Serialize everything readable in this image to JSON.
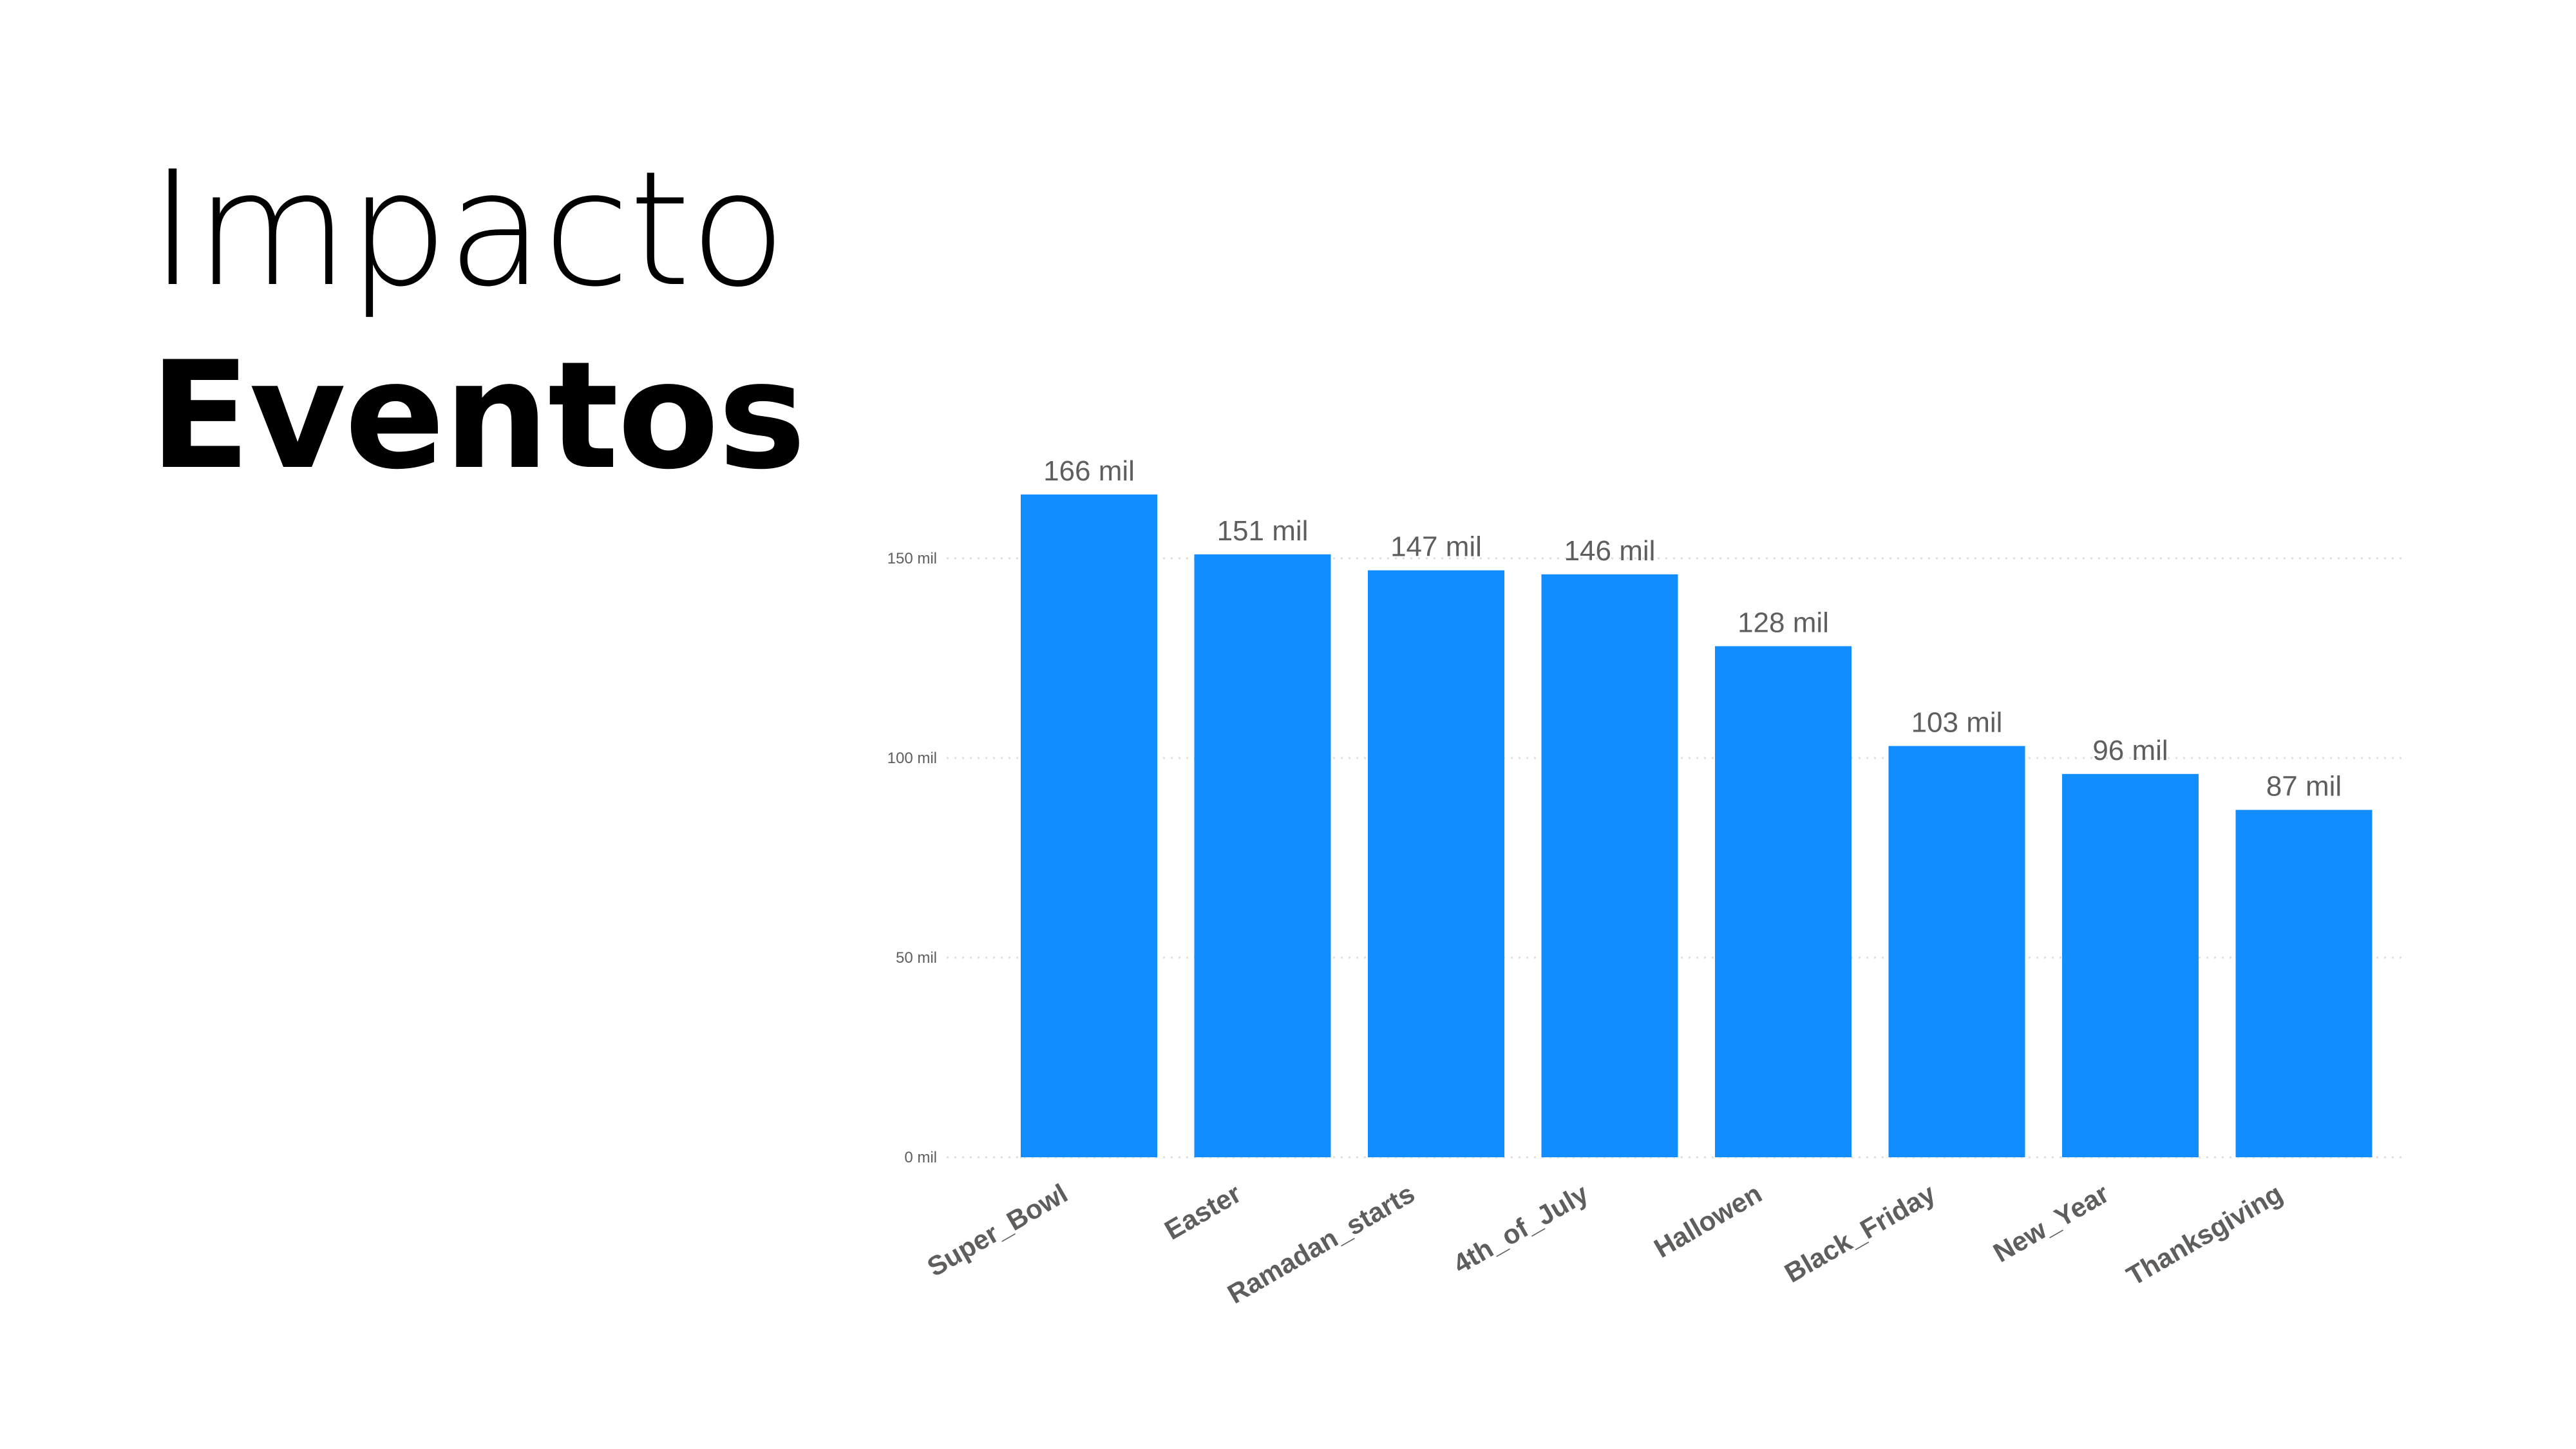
{
  "slide": {
    "title_line1": "Impacto",
    "title_line2": "Eventos"
  },
  "colors": {
    "bar": "#118dff",
    "gridline": "#e1dfdd",
    "label": "#605e5c"
  },
  "chart_data": {
    "type": "bar",
    "title": "",
    "xlabel": "",
    "ylabel": "",
    "categories": [
      "Super_Bowl",
      "Easter",
      "Ramadan_starts",
      "4th_of_July",
      "Hallowen",
      "Black_Friday",
      "New_Year",
      "Thanksgiving"
    ],
    "values": [
      166,
      151,
      147,
      146,
      128,
      103,
      96,
      87
    ],
    "data_labels": [
      "166 mil",
      "151 mil",
      "147 mil",
      "146 mil",
      "128 mil",
      "103 mil",
      "96 mil",
      "87 mil"
    ],
    "ylim": [
      0,
      150
    ],
    "y_ticks": [
      0,
      50,
      100,
      150
    ],
    "y_tick_labels": [
      "0 mil",
      "50 mil",
      "100 mil",
      "150 mil"
    ],
    "grid": true,
    "legend": "none"
  }
}
